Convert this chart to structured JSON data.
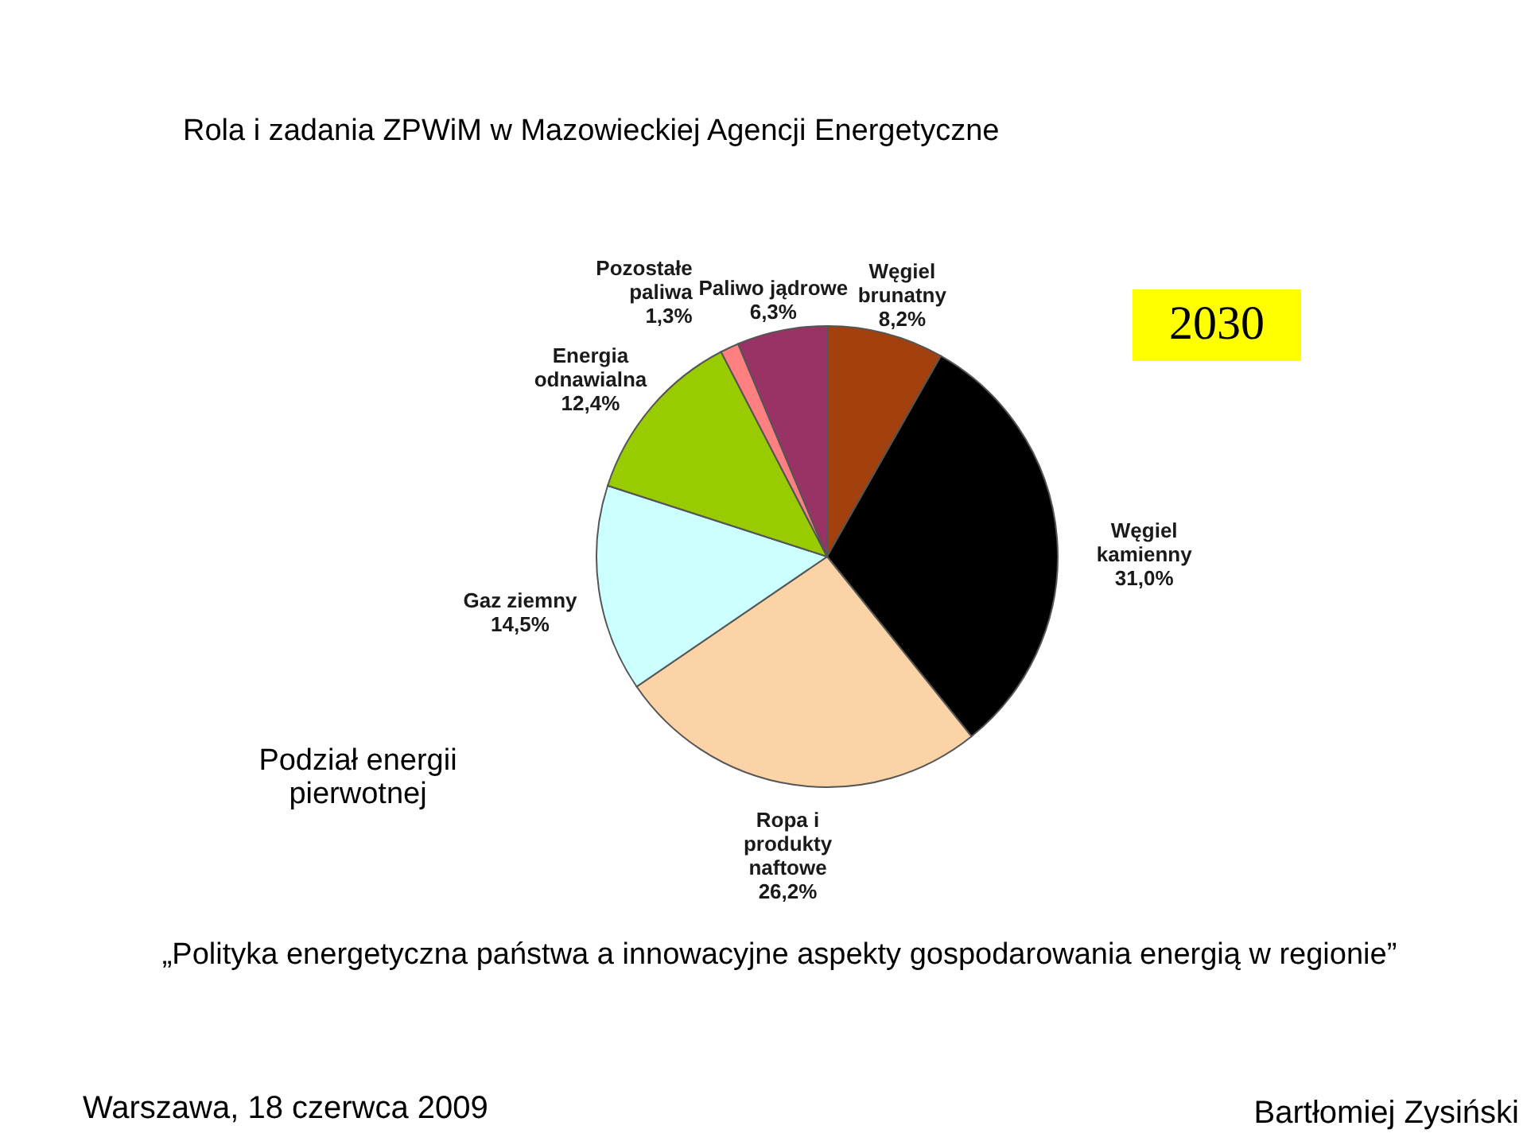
{
  "chart_data": {
    "type": "pie",
    "title": "Rola i zadania ZPWiM w Mazowieckiej Agencji Energetyczne",
    "subtitle": "Podział energii pierwotnej",
    "categories": [
      "Węgiel brunatny",
      "Węgiel kamienny",
      "Ropa i produkty naftowe",
      "Gaz ziemny",
      "Energia odnawialna",
      "Pozostałe paliwa",
      "Paliwo jądrowe"
    ],
    "values": [
      8.2,
      31.0,
      26.2,
      14.5,
      12.4,
      1.3,
      6.3
    ],
    "colors": [
      "#a3410e",
      "#000000",
      "#fcd3a6",
      "#ccffff",
      "#99cc00",
      "#ff8080",
      "#993366"
    ],
    "value_labels": [
      "8,2%",
      "31,0%",
      "26,2%",
      "14,5%",
      "12,4%",
      "1,3%",
      "6,3%"
    ],
    "annotations": [
      "2030",
      "„Polityka energetyczna państwa a innowacyjne aspekty gospodarowania energią w regionie”",
      "Warszawa, 18 czerwca 2009",
      "Bartłomiej Zysiński"
    ]
  }
}
